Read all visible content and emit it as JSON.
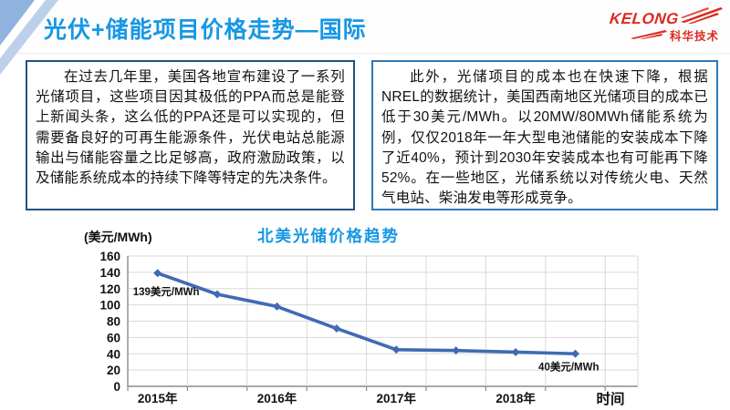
{
  "header": {
    "title": "光伏+储能项目价格走势—国际",
    "logo_brand": "KELONG",
    "logo_sub": "科华技术",
    "logo_color": "#dd2a20",
    "accent_color": "#1697e3"
  },
  "panels": {
    "left_text": "在过去几年里，美国各地宣布建设了一系列光储项目，这些项目因其极低的PPA而总是能登上新闻头条，这么低的PPA还是可以实现的，但需要备良好的可再生能源条件，光伏电站总能源输出与储能容量之比足够高，政府激励政策，以及储能系统成本的持续下降等特定的先决条件。",
    "right_text": "此外，光储项目的成本也在快速下降，根据NREL的数据统计，美国西南地区光储项目的成本已低于30美元/MWh。以20MW/80MWh储能系统为例，仅仅2018年一年大型电池储能的安装成本下降了近40%，预计到2030年安装成本也有可能再下降52%。在一些地区，光储系统以对传统火电、天然气电站、柴油发电等形成竞争。"
  },
  "chart_data": {
    "type": "line",
    "title": "北美光储价格趋势",
    "ylabel": "(美元/MWh)",
    "xlabel": "时间",
    "x": [
      "2015",
      "2015H2",
      "2016",
      "2016H2",
      "2017",
      "2017H2",
      "2018",
      "2018H2"
    ],
    "x_tick_labels": [
      "2015年",
      "2016年",
      "2017年",
      "2018年"
    ],
    "x_tick_point_indexes": [
      0,
      2,
      4,
      6
    ],
    "values": [
      139,
      113,
      98,
      71,
      45,
      44,
      42,
      40
    ],
    "ylim": [
      0,
      160
    ],
    "ytick_step": 20,
    "grid": true,
    "legend_position": "none",
    "line_color": "#3f6ab5",
    "grid_color": "#d9d9d9",
    "axis_color": "#8c8c8c",
    "annotations": [
      "139美元/MWh",
      "40美元/MWh"
    ]
  }
}
